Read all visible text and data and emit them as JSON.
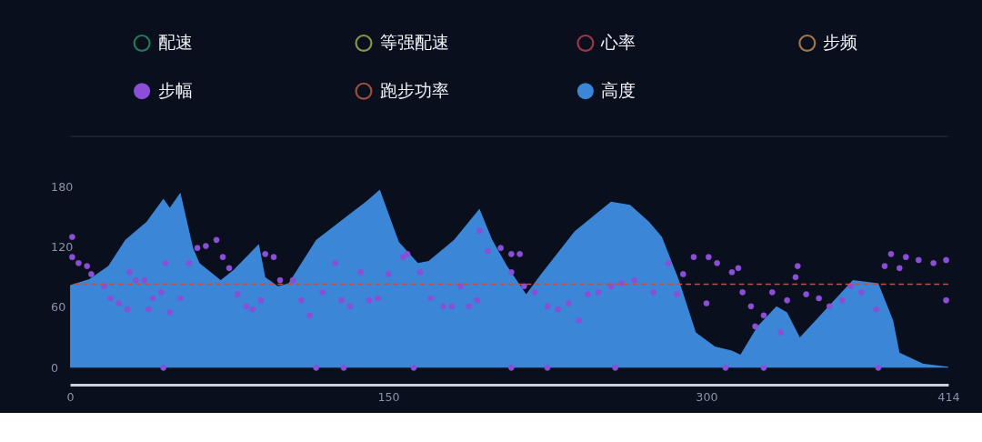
{
  "chart_data": {
    "type": "area",
    "xlim": [
      0,
      414
    ],
    "xticks": [
      0,
      150,
      300,
      414
    ],
    "ylim": [
      -17,
      230
    ],
    "yticks": [
      0,
      60,
      120,
      180
    ],
    "grid": false,
    "legend": "top",
    "ref_lines": [
      {
        "axis": "y",
        "value": 83,
        "color": "#b5544c",
        "line_style": "dashed"
      }
    ],
    "series": [
      {
        "name": "配速",
        "color": "#2ea86b"
      },
      {
        "name": "等强配速",
        "color": "#b8d24a"
      },
      {
        "name": "心率",
        "color": "#e0485c"
      },
      {
        "name": "步频",
        "color": "#e8a05a"
      },
      {
        "name": "步幅",
        "color": "#8a4fd6",
        "type": "scatter",
        "marker": "circle",
        "x": [
          1,
          1,
          4,
          8,
          10,
          16,
          19,
          23,
          27,
          28,
          31,
          35,
          37,
          39,
          43,
          44,
          45,
          47,
          52,
          56,
          60,
          64,
          69,
          72,
          75,
          79,
          83,
          86,
          90,
          92,
          96,
          99,
          105,
          109,
          113,
          116,
          119,
          125,
          128,
          129,
          132,
          137,
          141,
          145,
          150,
          157,
          159,
          162,
          165,
          170,
          176,
          180,
          184,
          188,
          192,
          193,
          197,
          203,
          208,
          208,
          208,
          212,
          214,
          219,
          225,
          225,
          230,
          235,
          240,
          244,
          249,
          255,
          257,
          260,
          266,
          275,
          282,
          286,
          289,
          294,
          300,
          301,
          305,
          309,
          312,
          315,
          317,
          321,
          323,
          327,
          327,
          331,
          335,
          338,
          342,
          343,
          347,
          353,
          358,
          364,
          368,
          373,
          380,
          381,
          384,
          387,
          391,
          394,
          400,
          407,
          413,
          413
        ],
        "values": [
          130,
          110,
          104,
          101,
          93,
          81,
          69,
          64,
          58,
          95,
          87,
          87,
          58,
          69,
          75,
          0,
          104,
          55,
          69,
          104,
          119,
          121,
          127,
          110,
          99,
          73,
          61,
          58,
          67,
          113,
          110,
          87,
          87,
          67,
          52,
          0,
          75,
          104,
          67,
          0,
          61,
          95,
          67,
          69,
          93,
          110,
          113,
          0,
          95,
          69,
          61,
          61,
          81,
          61,
          67,
          136,
          116,
          119,
          113,
          95,
          0,
          113,
          81,
          75,
          61,
          0,
          58,
          64,
          47,
          73,
          75,
          81,
          0,
          84,
          87,
          75,
          104,
          73,
          93,
          110,
          64,
          110,
          104,
          0,
          95,
          99,
          75,
          61,
          41,
          52,
          0,
          75,
          35,
          67,
          90,
          101,
          73,
          69,
          61,
          67,
          81,
          75,
          58,
          0,
          101,
          113,
          99,
          110,
          107,
          104,
          107,
          67
        ]
      },
      {
        "name": "跑步功率",
        "color": "#d9674a"
      },
      {
        "name": "高度",
        "color": "#3b86d6",
        "type": "area",
        "x": [
          0,
          9,
          18,
          26,
          36,
          44,
          47,
          52,
          58,
          61,
          71,
          77,
          89,
          92,
          98,
          103,
          116,
          132,
          140,
          146,
          155,
          164,
          169,
          181,
          193,
          199,
          206,
          215,
          222,
          238,
          255,
          264,
          273,
          279,
          287,
          295,
          304,
          312,
          316,
          324,
          333,
          338,
          344,
          369,
          381,
          388,
          391,
          402,
          414
        ],
        "values": [
          82,
          88,
          101,
          127,
          145,
          168,
          159,
          174,
          119,
          104,
          87,
          97,
          123,
          90,
          81,
          84,
          127,
          153,
          166,
          177,
          125,
          104,
          106,
          127,
          158,
          127,
          101,
          73,
          93,
          136,
          165,
          162,
          145,
          130,
          87,
          35,
          21,
          17,
          13,
          41,
          61,
          55,
          30,
          87,
          84,
          47,
          15,
          4,
          1
        ]
      }
    ]
  }
}
